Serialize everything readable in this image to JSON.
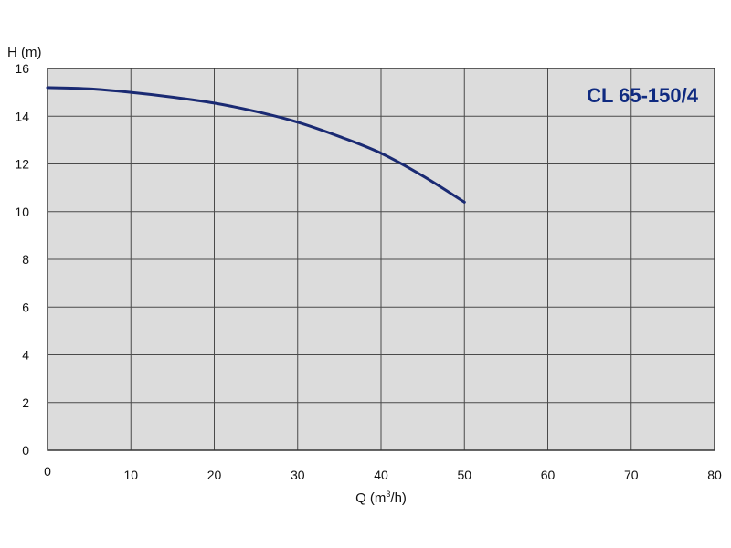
{
  "chart_data": {
    "type": "line",
    "title": "CL 65-150/4",
    "xlabel_main": "Q (m",
    "xlabel_sup": "3",
    "xlabel_end": "/h)",
    "ylabel": "H (m)",
    "xlim": [
      0,
      80
    ],
    "ylim": [
      0,
      16
    ],
    "x_ticks": [
      0,
      10,
      20,
      30,
      40,
      50,
      60,
      70,
      80
    ],
    "y_ticks": [
      0,
      2,
      4,
      6,
      8,
      10,
      12,
      14,
      16
    ],
    "grid": true,
    "series": [
      {
        "x": [
          0,
          5,
          10,
          15,
          20,
          25,
          30,
          35,
          40,
          45,
          50
        ],
        "y": [
          15.2,
          15.15,
          15.0,
          14.8,
          14.55,
          14.2,
          13.75,
          13.15,
          12.45,
          11.5,
          10.4
        ]
      }
    ],
    "colors": {
      "curve": "#1a2a73",
      "title": "#0f2a80",
      "plot_bg": "#dcdcdc",
      "grid": "#4a4a4a",
      "frame": "#333333"
    }
  }
}
